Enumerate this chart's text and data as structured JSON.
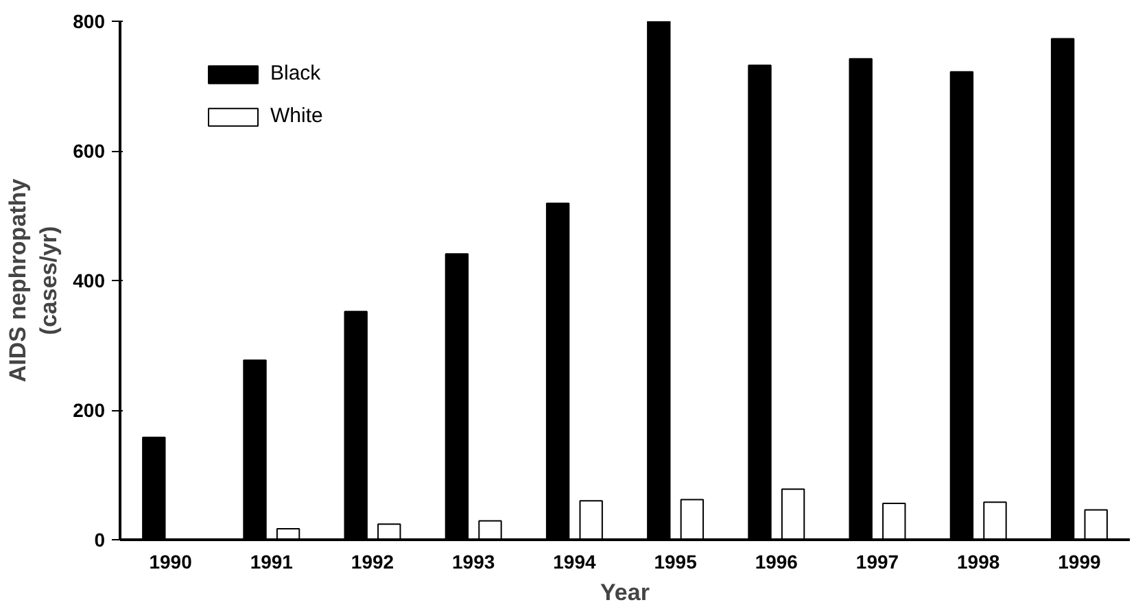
{
  "chart_data": {
    "type": "bar",
    "xlabel": "Year",
    "ylabel": "AIDS nephropathy\n(cases/yr)",
    "categories": [
      "1990",
      "1991",
      "1992",
      "1993",
      "1994",
      "1995",
      "1996",
      "1997",
      "1998",
      "1999"
    ],
    "series": [
      {
        "name": "Black",
        "color": "#000000",
        "values": [
          158,
          277,
          352,
          441,
          519,
          800,
          732,
          742,
          722,
          773
        ]
      },
      {
        "name": "White",
        "color": "#ffffff",
        "values": [
          null,
          17,
          24,
          29,
          60,
          62,
          78,
          56,
          58,
          46
        ]
      }
    ],
    "ylim": [
      0,
      800
    ],
    "yticks": [
      0,
      200,
      400,
      600,
      800
    ],
    "grid": false,
    "legend": "top left"
  }
}
